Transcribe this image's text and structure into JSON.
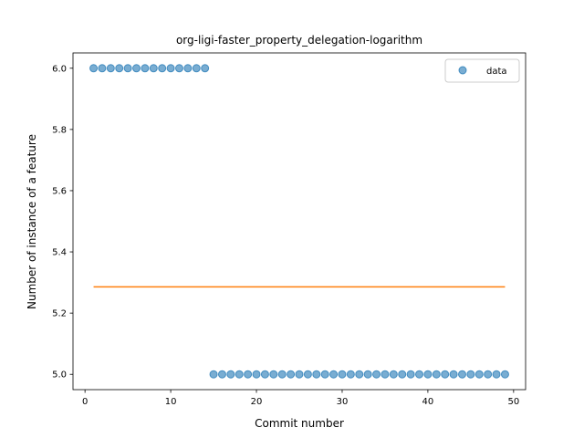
{
  "chart_data": {
    "type": "scatter",
    "title": "org-ligi-faster_property_delegation-logarithm",
    "xlabel": "Commit number",
    "ylabel": "Number of instance of a feature",
    "xlim": [
      -1.4,
      51.4
    ],
    "ylim": [
      4.95,
      6.05
    ],
    "xticks": [
      0,
      10,
      20,
      30,
      40,
      50
    ],
    "yticks": [
      5.0,
      5.2,
      5.4,
      5.6,
      5.8,
      6.0
    ],
    "xtick_labels": [
      "0",
      "10",
      "20",
      "30",
      "40",
      "50"
    ],
    "ytick_labels": [
      "5.0",
      "5.2",
      "5.4",
      "5.6",
      "5.8",
      "6.0"
    ],
    "grid": false,
    "legend_position": "top-right",
    "series": [
      {
        "name": "data",
        "kind": "scatter",
        "color": "#1f77b4",
        "x": [
          1,
          2,
          3,
          4,
          5,
          6,
          7,
          8,
          9,
          10,
          11,
          12,
          13,
          14,
          15,
          16,
          17,
          18,
          19,
          20,
          21,
          22,
          23,
          24,
          25,
          26,
          27,
          28,
          29,
          30,
          31,
          32,
          33,
          34,
          35,
          36,
          37,
          38,
          39,
          40,
          41,
          42,
          43,
          44,
          45,
          46,
          47,
          48,
          49
        ],
        "y": [
          6,
          6,
          6,
          6,
          6,
          6,
          6,
          6,
          6,
          6,
          6,
          6,
          6,
          6,
          5,
          5,
          5,
          5,
          5,
          5,
          5,
          5,
          5,
          5,
          5,
          5,
          5,
          5,
          5,
          5,
          5,
          5,
          5,
          5,
          5,
          5,
          5,
          5,
          5,
          5,
          5,
          5,
          5,
          5,
          5,
          5,
          5,
          5,
          5
        ]
      },
      {
        "kind": "line",
        "color": "#ff7f0e",
        "x": [
          1,
          49
        ],
        "y": [
          5.2857,
          5.2857
        ]
      }
    ]
  }
}
